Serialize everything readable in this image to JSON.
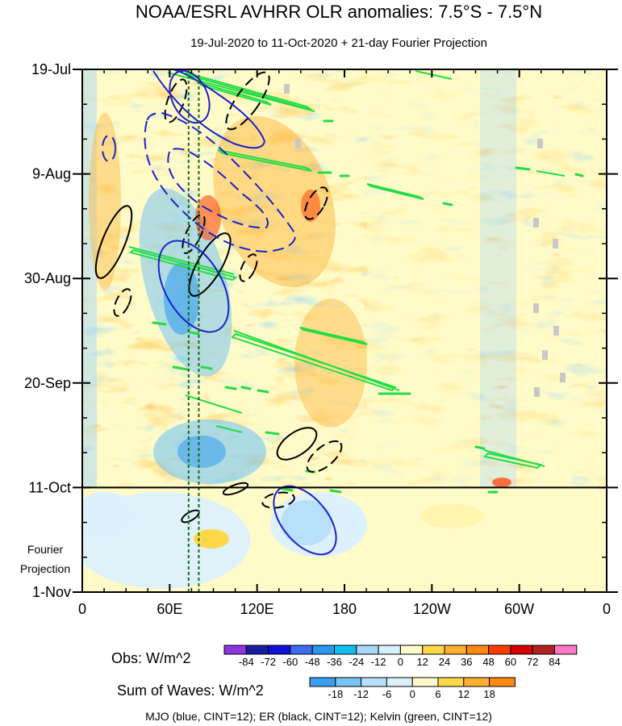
{
  "chart_data": {
    "type": "heatmap",
    "title": "NOAA/ESRL AVHRR OLR anomalies: 7.5°S - 7.5°N",
    "subtitle": "19-Jul-2020 to 11-Oct-2020 + 21-day Fourier Projection",
    "x_ticks": [
      "0",
      "60E",
      "120E",
      "180",
      "120W",
      "60W",
      "0"
    ],
    "x_range_deg": [
      0,
      360
    ],
    "y_ticks": [
      "19-Jul",
      "9-Aug",
      "30-Aug",
      "20-Sep",
      "11-Oct",
      "1-Nov"
    ],
    "y_range_days": [
      0,
      105
    ],
    "observation_end_day": 84,
    "projection_label": [
      "Fourier",
      "Projection"
    ],
    "reference_longitudes_deg": [
      73,
      80
    ],
    "colorbar_obs": {
      "label": "Obs: W/m^2",
      "levels": [
        "-84",
        "-72",
        "-60",
        "-48",
        "-36",
        "-24",
        "-12",
        "0",
        "12",
        "24",
        "36",
        "48",
        "60",
        "72",
        "84"
      ],
      "colors": [
        "#8f35e0",
        "#1c1ca0",
        "#1010d8",
        "#3c6cf0",
        "#2898f0",
        "#10c0f0",
        "#a8d8f8",
        "#d8f0fc",
        "#fffbc8",
        "#ffd84a",
        "#ffb030",
        "#ff8a10",
        "#ff3c00",
        "#d80000",
        "#b02020",
        "#ff78c8"
      ]
    },
    "colorbar_waves": {
      "label": "Sum of Waves: W/m^2",
      "levels": [
        "-18",
        "-12",
        "-6",
        "0",
        "6",
        "12",
        "18"
      ],
      "colors": [
        "#3c9ef0",
        "#78c4f4",
        "#b8e0fa",
        "#ddf1fc",
        "#fffbc8",
        "#ffd84a",
        "#ffb030",
        "#ff8a10"
      ]
    },
    "legend": "MJO (blue, CINT=12); ER (black, CINT=12); Kelvin (green, CINT=12)"
  }
}
